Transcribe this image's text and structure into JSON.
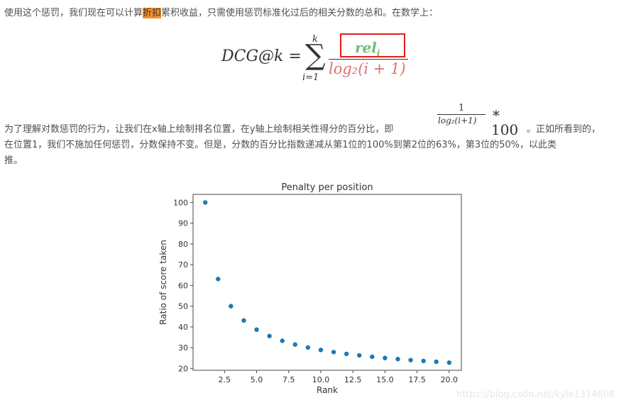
{
  "paragraph1": {
    "before": "使用这个惩罚，我们现在可以计算",
    "highlight": "折扣",
    "after": "累积收益，只需使用惩罚标准化过后的相关分数的总和。在数学上：",
    "highlight_color": "#f7902b"
  },
  "equation": {
    "lhs": "DCG@k =",
    "sigma": "∑",
    "upper": "k",
    "lower": "i=1",
    "numerator": "rel",
    "numerator_sub": "i",
    "denominator": "log₂(i + 1)",
    "numerator_color": "#6cbf72",
    "denominator_color": "#e07070",
    "box_color": "#e51c1c"
  },
  "paragraph2": {
    "line1_before": "为了理解对数惩罚的行为，让我们在x轴上绘制排名位置，在y轴上绘制相关性得分的百分比，即",
    "line1_after": "。正如所看到的，",
    "line2": "在位置1，我们不施加任何惩罚，分数保持不变。但是，分数的百分比指数递减从第1位的100%到第2位的63%，第3位的50%，以此类",
    "line3": "推。"
  },
  "inline_equation": {
    "numerator": "1",
    "denominator": "log₂(i+1)",
    "multiplier": "∗ 100"
  },
  "chart_data": {
    "type": "scatter",
    "title": "Penalty per position",
    "xlabel": "Rank",
    "ylabel": "Ratio of score taken",
    "x": [
      1,
      2,
      3,
      4,
      5,
      6,
      7,
      8,
      9,
      10,
      11,
      12,
      13,
      14,
      15,
      16,
      17,
      18,
      19,
      20
    ],
    "values": [
      100,
      63.1,
      50,
      43.1,
      38.7,
      35.6,
      33.3,
      31.5,
      30.1,
      28.9,
      27.9,
      27.0,
      26.3,
      25.6,
      25.0,
      24.5,
      24.0,
      23.6,
      23.2,
      22.8
    ],
    "xticks": [
      "2.5",
      "5.0",
      "7.5",
      "10.0",
      "12.5",
      "15.0",
      "17.5",
      "20.0"
    ],
    "yticks": [
      "20",
      "30",
      "40",
      "50",
      "60",
      "70",
      "80",
      "90",
      "100"
    ],
    "xlim": [
      0.05,
      20.95
    ],
    "ylim": [
      19.1,
      103.9
    ],
    "grid": false,
    "marker_color": "#1f77b4"
  },
  "watermark": "https://blog.csdn.net/kyle1314608"
}
